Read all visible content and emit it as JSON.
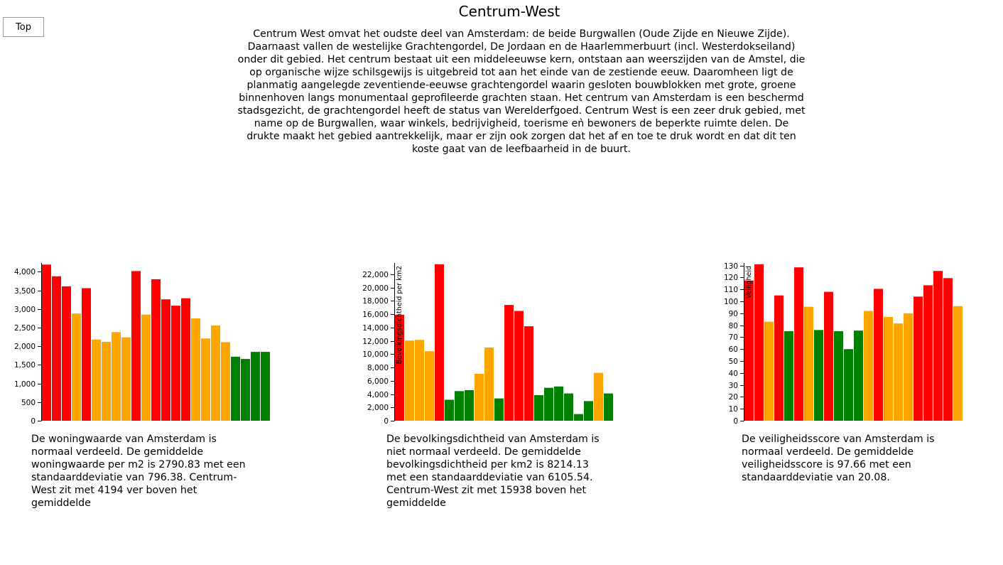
{
  "top_button": "Top",
  "title": "Centrum-West",
  "intro": "Centrum West omvat het oudste deel van Amsterdam: de beide Burgwallen (Oude Zijde en Nieuwe Zijde). Daarnaast vallen de westelijke Grachtengordel, De Jordaan en de Haarlemmerbuurt (incl. Westerdokseiland) onder dit gebied. Het centrum bestaat uit een middeleeuwse kern, ontstaan aan weerszijden van de Amstel, die op organische wijze schilsgewijs is uitgebreid tot aan het einde van de zestiende eeuw. Daaromheen ligt de planmatig aangelegde zeventiende-eeuwse grachtengordel waarin gesloten bouwblokken met grote, groene binnenhoven langs monumentaal geprofileerde grachten staan. Het centrum van Amsterdam is een beschermd stadsgezicht, de grachtengordel heeft de status van Werelderfgoed. Centrum West is een zeer druk gebied, met name op de Burgwallen, waar winkels, bedrijvigheid, toerisme eǹ bewoners de beperkte ruimte delen. De drukte maakt het gebied aantrekkelijk, maar er zijn ook zorgen dat het af en toe te druk wordt en dat dit ten koste gaat van de leefbaarheid in de buurt.",
  "colors": {
    "high": "#ff0000",
    "mid": "#ffa500",
    "low": "#008000"
  },
  "captions": [
    "De woningwaarde van Amsterdam is normaal verdeeld. De gemiddelde woningwaarde per m2 is 2790.83 met een standaarddeviatie van 796.38. Centrum-West zit met 4194 ver boven het gemiddelde",
    "De bevolkingsdichtheid van Amsterdam is niet normaal verdeeld. De gemiddelde bevolkingsdichtheid per km2 is 8214.13 met een standaarddeviatie van 6105.54. Centrum-West zit met 15938 boven het gemiddelde",
    "De veiligheidsscore van Amsterdam is normaal verdeeld. De gemiddelde veiligheidsscore is 97.66 met een standaarddeviatie van 20.08."
  ],
  "chart_data": [
    {
      "type": "bar",
      "ylabel": "",
      "ylim": [
        0,
        4200
      ],
      "yticks": [
        0,
        500,
        1000,
        1500,
        2000,
        2500,
        3000,
        3500,
        4000
      ],
      "values": [
        4194,
        3880,
        3610,
        2880,
        3560,
        2180,
        2120,
        2380,
        2240,
        4020,
        2850,
        3800,
        3260,
        3090,
        3290,
        2750,
        2210,
        2560,
        2110,
        1720,
        1660,
        1850,
        1850
      ],
      "levels": [
        "high",
        "high",
        "high",
        "mid",
        "high",
        "mid",
        "mid",
        "mid",
        "mid",
        "high",
        "mid",
        "high",
        "high",
        "high",
        "high",
        "mid",
        "mid",
        "mid",
        "mid",
        "low",
        "low",
        "low",
        "low"
      ]
    },
    {
      "type": "bar",
      "ylabel": "Bevolkingsdichtheid per km2",
      "ylim": [
        0,
        23500
      ],
      "yticks": [
        0,
        2000,
        4000,
        6000,
        8000,
        10000,
        12000,
        14000,
        16000,
        18000,
        20000,
        22000
      ],
      "values": [
        15938,
        12050,
        12150,
        10450,
        23500,
        3150,
        4450,
        4600,
        7050,
        11000,
        3350,
        17400,
        16500,
        14200,
        3850,
        4950,
        5150,
        4100,
        1000,
        2950,
        7200,
        4100
      ],
      "levels": [
        "high",
        "mid",
        "mid",
        "mid",
        "high",
        "low",
        "low",
        "low",
        "mid",
        "mid",
        "low",
        "high",
        "high",
        "high",
        "low",
        "low",
        "low",
        "low",
        "low",
        "low",
        "mid",
        "low"
      ]
    },
    {
      "type": "bar",
      "ylabel": "Veiligheid",
      "ylim": [
        0,
        131
      ],
      "yticks": [
        0,
        10,
        20,
        30,
        40,
        50,
        60,
        70,
        80,
        90,
        100,
        110,
        120,
        130
      ],
      "values": [
        117.5,
        131,
        83,
        105,
        75,
        128.5,
        95.5,
        76,
        108,
        75,
        60,
        75.5,
        92,
        110.5,
        87,
        81.5,
        90,
        104,
        113.5,
        125.5,
        119.5,
        96
      ],
      "levels": [
        "high",
        "high",
        "mid",
        "high",
        "low",
        "high",
        "mid",
        "low",
        "high",
        "low",
        "low",
        "low",
        "mid",
        "high",
        "mid",
        "mid",
        "mid",
        "high",
        "high",
        "high",
        "high",
        "mid"
      ]
    }
  ]
}
